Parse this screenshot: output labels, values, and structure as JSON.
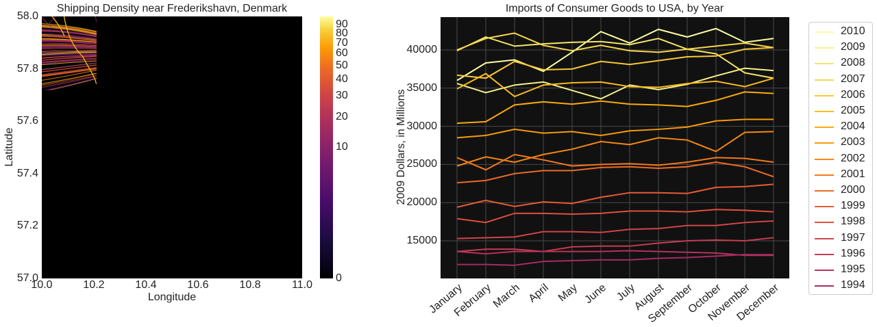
{
  "chart_data": [
    {
      "type": "heatmap",
      "title": "Shipping Density near Frederikshavn, Denmark",
      "xlabel": "Longitude",
      "ylabel": "Latitude",
      "xlim": [
        10.0,
        11.0
      ],
      "ylim": [
        57.0,
        58.0
      ],
      "xticks": [
        "10.0",
        "10.2",
        "10.4",
        "10.6",
        "10.8",
        "11.0"
      ],
      "yticks": [
        "57.0",
        "57.2",
        "57.4",
        "57.6",
        "57.8",
        "58.0"
      ],
      "colorbar": {
        "ticks": [
          0,
          10,
          20,
          30,
          40,
          50,
          60,
          70,
          80,
          90
        ],
        "range": [
          0,
          100
        ],
        "norm": "power 0.3",
        "colormap": "inferno"
      },
      "land_color": "#1a311b",
      "sea_color": "#000000"
    },
    {
      "type": "line",
      "title": "Imports of Consumer Goods to USA, by Year",
      "xlabel": "",
      "ylabel": "2009 Dollars, in Millions",
      "categories": [
        "January",
        "February",
        "March",
        "April",
        "May",
        "June",
        "July",
        "August",
        "September",
        "October",
        "November",
        "December"
      ],
      "yticks": [
        15000,
        20000,
        25000,
        30000,
        35000,
        40000
      ],
      "ylim": [
        10000,
        44000
      ],
      "grid": true,
      "legend": "outside-right",
      "series": [
        {
          "name": "2010",
          "color": "#fcfca4",
          "values": [
            36000,
            38300,
            38700,
            37200,
            39700,
            42400,
            40900,
            42700,
            41700,
            42800,
            41000,
            41500
          ]
        },
        {
          "name": "2009",
          "color": "#f6f18c",
          "values": [
            35600,
            34400,
            35400,
            35800,
            34700,
            33600,
            35400,
            34800,
            35500,
            36600,
            37600,
            37300
          ]
        },
        {
          "name": "2008",
          "color": "#f4e66b",
          "values": [
            39900,
            41700,
            40500,
            40800,
            41000,
            41100,
            40700,
            41500,
            40100,
            39500,
            37000,
            36300
          ]
        },
        {
          "name": "2007",
          "color": "#f6d84c",
          "values": [
            40000,
            41500,
            42200,
            40600,
            39900,
            40600,
            39900,
            39700,
            40100,
            40500,
            40900,
            40300
          ]
        },
        {
          "name": "2006",
          "color": "#f9c935",
          "values": [
            36700,
            36300,
            38500,
            37400,
            37500,
            38500,
            38100,
            38600,
            39100,
            39200,
            40100,
            40300
          ]
        },
        {
          "name": "2005",
          "color": "#fbba1e",
          "values": [
            34900,
            36900,
            33900,
            35400,
            35700,
            35800,
            35200,
            35100,
            35600,
            35900,
            35200,
            36300
          ]
        },
        {
          "name": "2004",
          "color": "#fbaa0a",
          "values": [
            30400,
            30600,
            32800,
            33200,
            32900,
            33300,
            32900,
            32800,
            32600,
            33400,
            34500,
            34300
          ]
        },
        {
          "name": "2003",
          "color": "#f99a08",
          "values": [
            28500,
            28800,
            29600,
            29100,
            29300,
            28800,
            29400,
            29600,
            29900,
            30700,
            30900,
            30900
          ]
        },
        {
          "name": "2002",
          "color": "#f6890f",
          "values": [
            24800,
            26000,
            25300,
            26300,
            27000,
            28000,
            27600,
            28500,
            28200,
            26700,
            29200,
            29300
          ]
        },
        {
          "name": "2001",
          "color": "#f3791b",
          "values": [
            25900,
            24300,
            26300,
            25600,
            24800,
            25000,
            25100,
            24900,
            25300,
            25900,
            25800,
            25300
          ]
        },
        {
          "name": "2000",
          "color": "#ee6a26",
          "values": [
            22600,
            22900,
            23800,
            24200,
            24200,
            24600,
            24700,
            24500,
            24700,
            25300,
            24700,
            23400
          ]
        },
        {
          "name": "1999",
          "color": "#e85b33",
          "values": [
            19400,
            20300,
            19500,
            20100,
            19900,
            20700,
            21300,
            21300,
            21200,
            22000,
            22100,
            22400
          ]
        },
        {
          "name": "1998",
          "color": "#df4f3f",
          "values": [
            17900,
            17400,
            18600,
            18600,
            18500,
            18600,
            18900,
            18900,
            18800,
            19100,
            19000,
            18800
          ]
        },
        {
          "name": "1997",
          "color": "#d4434a",
          "values": [
            15300,
            15400,
            15500,
            16200,
            16200,
            16100,
            16500,
            16600,
            17000,
            17000,
            17400,
            17600
          ]
        },
        {
          "name": "1996",
          "color": "#c73b52",
          "values": [
            13600,
            13900,
            13900,
            13600,
            14200,
            14300,
            14300,
            14700,
            15000,
            15100,
            15000,
            15400
          ]
        },
        {
          "name": "1995",
          "color": "#b6325c",
          "values": [
            13600,
            13300,
            13600,
            13600,
            13600,
            13600,
            13700,
            13600,
            13500,
            13400,
            13100,
            13100
          ]
        },
        {
          "name": "1994",
          "color": "#a52c60",
          "values": [
            11900,
            11900,
            11800,
            12300,
            12400,
            12500,
            12500,
            12700,
            12800,
            13000,
            13200,
            13200
          ]
        }
      ]
    }
  ]
}
